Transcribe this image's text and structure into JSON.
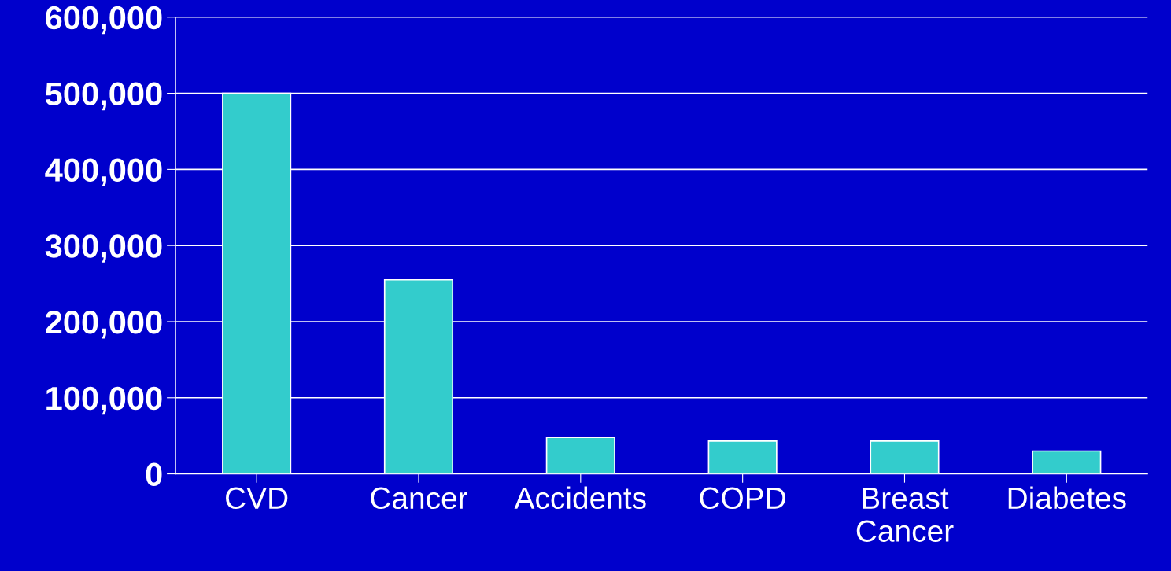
{
  "chart_data": {
    "type": "bar",
    "categories": [
      "CVD",
      "Cancer",
      "Accidents",
      "COPD",
      "Breast\nCancer",
      "Diabetes"
    ],
    "values": [
      500000,
      255000,
      48000,
      43000,
      43000,
      30000
    ],
    "color": "#33cccc",
    "ylim": [
      0,
      600000
    ],
    "yticks": [
      {
        "value": 0,
        "label": "0"
      },
      {
        "value": 100000,
        "label": "100,000"
      },
      {
        "value": 200000,
        "label": "200,000"
      },
      {
        "value": 300000,
        "label": "300,000"
      },
      {
        "value": 400000,
        "label": "400,000"
      },
      {
        "value": 500000,
        "label": "500,000"
      },
      {
        "value": 600000,
        "label": "600,000"
      }
    ],
    "grid": "y"
  }
}
